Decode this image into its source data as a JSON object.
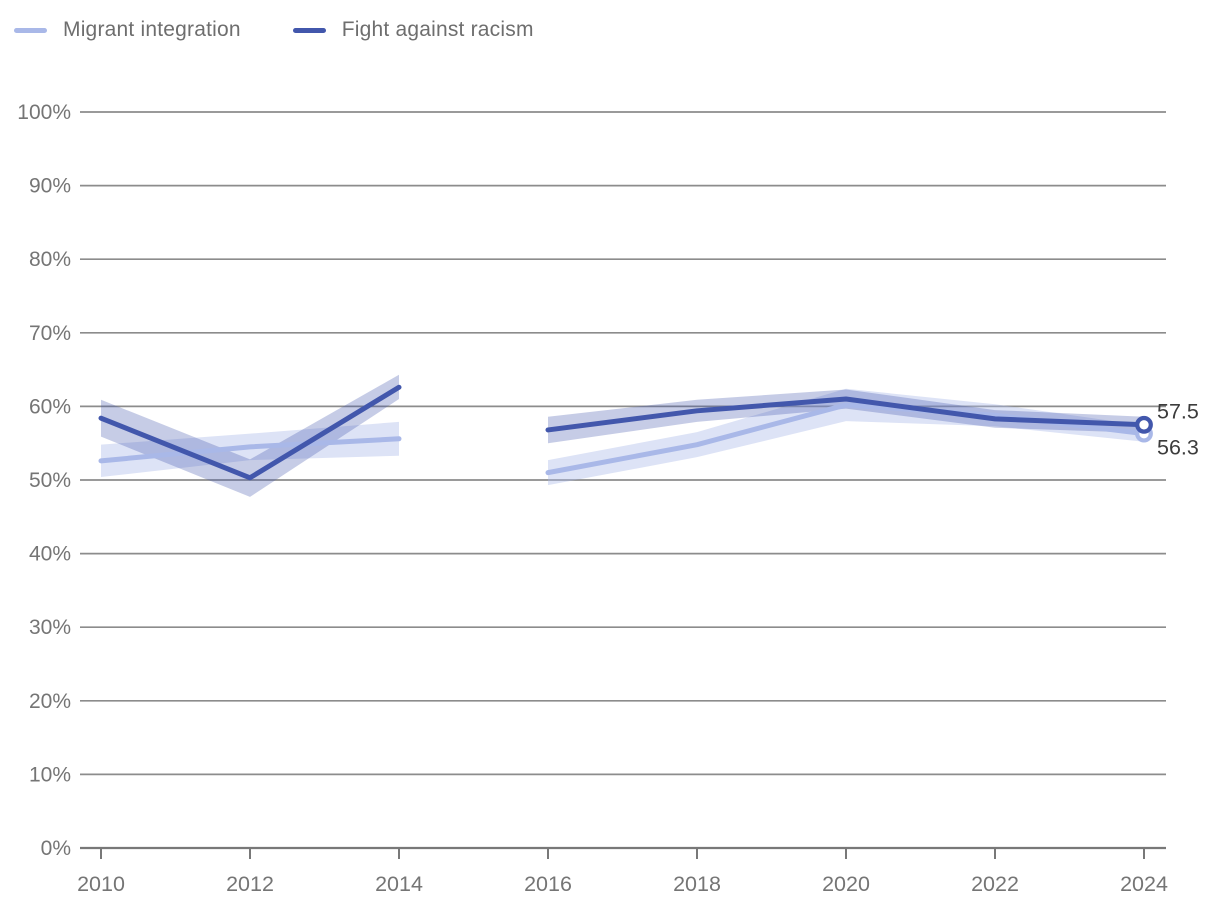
{
  "legend": {
    "items": [
      {
        "label": "Migrant integration"
      },
      {
        "label": "Fight against racism"
      }
    ]
  },
  "chart_data": {
    "type": "line",
    "title": "",
    "xlabel": "",
    "ylabel": "",
    "ylim": [
      0,
      100
    ],
    "xlim": [
      2010,
      2024
    ],
    "grid": "horizontal",
    "legend_position": "top-left",
    "y_ticks": [
      {
        "value": 0,
        "label": "0%"
      },
      {
        "value": 10,
        "label": "10%"
      },
      {
        "value": 20,
        "label": "20%"
      },
      {
        "value": 30,
        "label": "30%"
      },
      {
        "value": 40,
        "label": "40%"
      },
      {
        "value": 50,
        "label": "50%"
      },
      {
        "value": 60,
        "label": "60%"
      },
      {
        "value": 70,
        "label": "70%"
      },
      {
        "value": 80,
        "label": "80%"
      },
      {
        "value": 90,
        "label": "90%"
      },
      {
        "value": 100,
        "label": "100%"
      }
    ],
    "x_ticks": [
      2010,
      2012,
      2014,
      2016,
      2018,
      2020,
      2022,
      2024
    ],
    "gap_between": [
      2014,
      2016
    ],
    "series": [
      {
        "name": "Migrant integration",
        "color": "#a9b8e8",
        "band_opacity": 0.4,
        "end_label": "56.3",
        "segments": [
          {
            "x": [
              2010,
              2012,
              2014
            ],
            "y": [
              52.6,
              54.5,
              55.6
            ],
            "lo": [
              50.4,
              52.7,
              53.3
            ],
            "hi": [
              54.8,
              56.3,
              57.9
            ]
          },
          {
            "x": [
              2016,
              2018,
              2020,
              2022,
              2024
            ],
            "y": [
              51.0,
              54.8,
              60.2,
              58.8,
              56.3
            ],
            "lo": [
              49.3,
              53.1,
              58.0,
              57.3,
              55.2
            ],
            "hi": [
              52.7,
              56.5,
              62.4,
              60.3,
              57.4
            ]
          }
        ]
      },
      {
        "name": "Fight against racism",
        "color": "#4257ac",
        "band_opacity": 0.3,
        "end_label": "57.5",
        "segments": [
          {
            "x": [
              2010,
              2012,
              2014
            ],
            "y": [
              58.4,
              50.3,
              62.6
            ],
            "lo": [
              55.9,
              47.7,
              61.0
            ],
            "hi": [
              60.9,
              52.8,
              64.3
            ]
          },
          {
            "x": [
              2016,
              2018,
              2020,
              2022,
              2024
            ],
            "y": [
              56.8,
              59.4,
              61.0,
              58.3,
              57.5
            ],
            "lo": [
              55.0,
              57.9,
              59.7,
              57.1,
              56.4
            ],
            "hi": [
              58.6,
              60.9,
              62.3,
              59.5,
              58.6
            ]
          }
        ]
      }
    ],
    "style": {
      "gridline_color": "#8c8c8c",
      "axis_color": "#787878",
      "tick_label_color": "#757575",
      "end_label_color": "#3c3c3c",
      "background": "#ffffff"
    }
  }
}
